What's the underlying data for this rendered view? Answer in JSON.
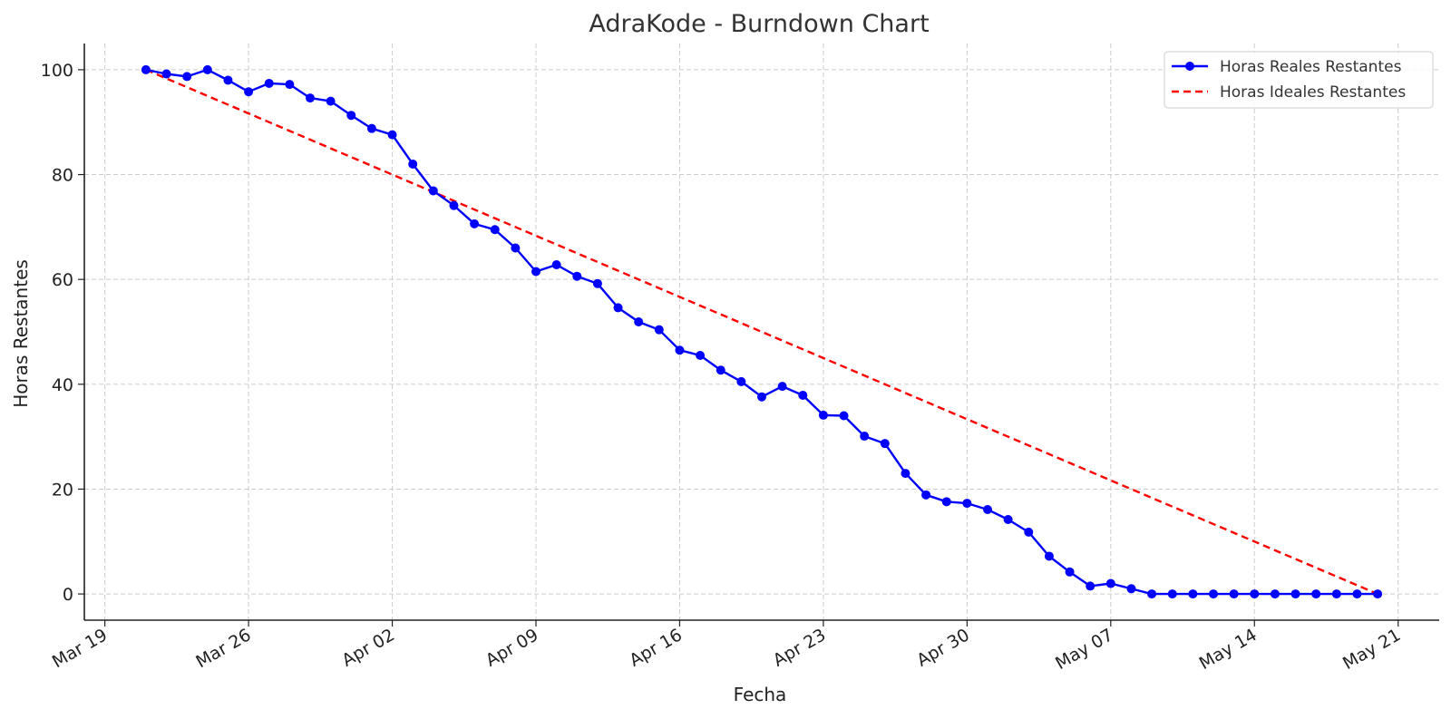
{
  "chart_data": {
    "type": "line",
    "title": "AdraKode - Burndown Chart",
    "xlabel": "Fecha",
    "ylabel": "Horas Restantes",
    "x_start": "2024-03-21",
    "x_end": "2024-05-20",
    "xlim": [
      "2024-03-18",
      "2024-05-23"
    ],
    "ylim": [
      -5,
      105
    ],
    "x_ticks": [
      "Mar 19",
      "Mar 26",
      "Apr 02",
      "Apr 09",
      "Apr 16",
      "Apr 23",
      "Apr 30",
      "May 07",
      "May 14",
      "May 21"
    ],
    "x_tick_dates": [
      "2024-03-19",
      "2024-03-26",
      "2024-04-02",
      "2024-04-09",
      "2024-04-16",
      "2024-04-23",
      "2024-04-30",
      "2024-05-07",
      "2024-05-14",
      "2024-05-21"
    ],
    "y_ticks": [
      0,
      20,
      40,
      60,
      80,
      100
    ],
    "grid": true,
    "legend_position": "top-right",
    "series": [
      {
        "name": "Horas Reales Restantes",
        "color": "#0000ff",
        "style": "solid-markers",
        "values": [
          100,
          99.2,
          98.7,
          100,
          98,
          95.8,
          97.4,
          97.2,
          94.6,
          94,
          91.3,
          88.8,
          87.6,
          82,
          76.9,
          74.1,
          70.6,
          69.5,
          66,
          61.5,
          62.8,
          60.6,
          59.2,
          54.6,
          51.9,
          50.4,
          46.5,
          45.5,
          42.7,
          40.5,
          37.6,
          39.6,
          37.9,
          34.1,
          34,
          30.1,
          28.7,
          23,
          18.9,
          17.6,
          17.3,
          16.1,
          14.2,
          11.8,
          7.2,
          4.2,
          1.5,
          2,
          1,
          0,
          0,
          0,
          0,
          0,
          0,
          0,
          0,
          0,
          0,
          0,
          0
        ]
      },
      {
        "name": "Horas Ideales Restantes",
        "color": "#ff0000",
        "style": "dashed",
        "values": [
          100,
          0
        ]
      }
    ]
  }
}
